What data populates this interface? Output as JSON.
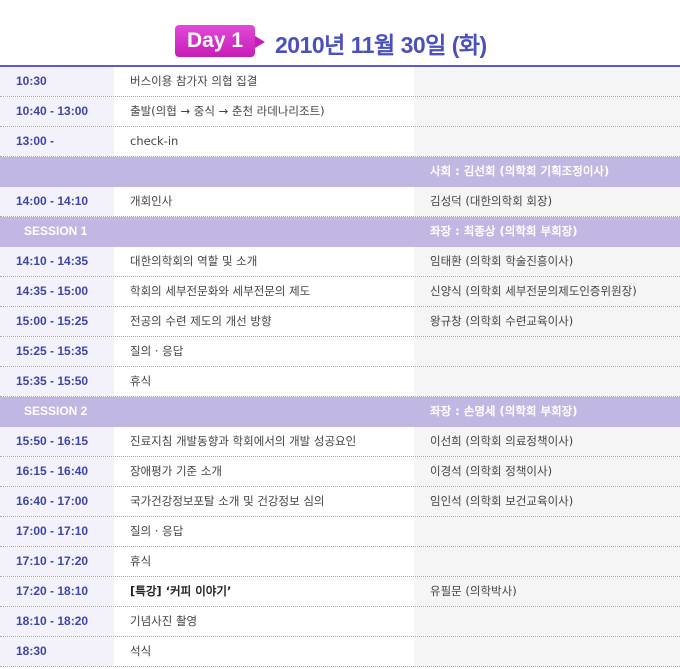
{
  "header": {
    "day_badge": "Day 1",
    "date": "2010년 11월 30일 (화)",
    "accent": "#4b50bd",
    "badge_color": "#c81cb8"
  },
  "rows": [
    {
      "time": "10:30",
      "topic": "버스이용 참가자 의협 집결",
      "speaker": ""
    },
    {
      "time": "10:40 - 13:00",
      "topic": "출발(의협 → 중식 → 춘천 라데나리조트)",
      "speaker": ""
    },
    {
      "time": "13:00 -",
      "topic": "check-in",
      "speaker": ""
    },
    {
      "section": true,
      "time": "",
      "topic": "",
      "speaker": "사회 : 김선회 (의학회 기획조정이사)"
    },
    {
      "time": "14:00 - 14:10",
      "topic": "개회인사",
      "speaker": "김성덕 (대한의학회 회장)"
    },
    {
      "section": true,
      "time": "SESSION 1",
      "topic": "",
      "speaker": "좌장 : 최종상 (의학회 부회장)"
    },
    {
      "time": "14:10 - 14:35",
      "topic": "대한의학회의 역할 및 소개",
      "speaker": "임태환 (의학회 학술진흥이사)"
    },
    {
      "time": "14:35 - 15:00",
      "topic": "학회의 세부전문화와 세부전문의 제도",
      "speaker": "신양식 (의학회 세부전문의제도인증위원장)"
    },
    {
      "time": "15:00 - 15:25",
      "topic": "전공의 수련 제도의 개선 방향",
      "speaker": "왕규창 (의학회 수련교육이사)"
    },
    {
      "time": "15:25 - 15:35",
      "topic": "질의 · 응답",
      "speaker": ""
    },
    {
      "time": "15:35 - 15:50",
      "topic": "휴식",
      "speaker": ""
    },
    {
      "section": true,
      "time": "SESSION 2",
      "topic": "",
      "speaker": "좌장 : 손명세 (의학회 부회장)"
    },
    {
      "time": "15:50 - 16:15",
      "topic": "진료지침 개발동향과 학회에서의 개발 성공요인",
      "speaker": "이선희 (의학회 의료정책이사)"
    },
    {
      "time": "16:15 - 16:40",
      "topic": "장애평가 기준 소개",
      "speaker": "이경석 (의학회 정책이사)"
    },
    {
      "time": "16:40 - 17:00",
      "topic": "국가건강정보포탈 소개 및 건강정보 심의",
      "speaker": "임인석 (의학회 보건교육이사)"
    },
    {
      "time": "17:00 - 17:10",
      "topic": "질의 · 응답",
      "speaker": ""
    },
    {
      "time": "17:10 - 17:20",
      "topic": "휴식",
      "speaker": ""
    },
    {
      "time": "17:20 - 18:10",
      "topic": "[특강] ‘커피 이야기’",
      "speaker": "유필문 (의학박사)",
      "bold": true
    },
    {
      "time": "18:10 - 18:20",
      "topic": "기념사진 촬영",
      "speaker": ""
    },
    {
      "time": "18:30",
      "topic": "석식",
      "speaker": ""
    }
  ]
}
